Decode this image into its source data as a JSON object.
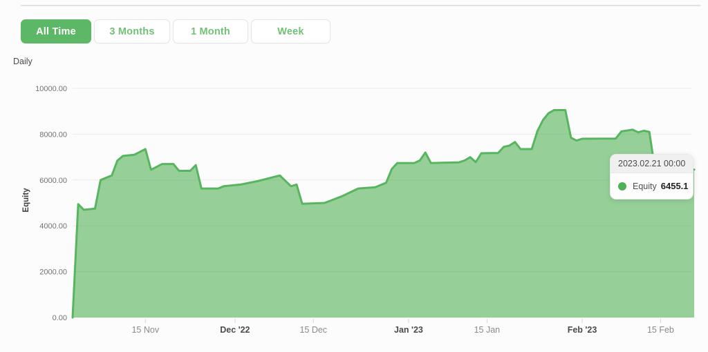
{
  "toolbar": {
    "buttons": [
      {
        "label": "All Time",
        "active": true
      },
      {
        "label": "3 Months",
        "active": false
      },
      {
        "label": "1 Month",
        "active": false
      },
      {
        "label": "Week",
        "active": false
      }
    ]
  },
  "period_label": "Daily",
  "tooltip": {
    "title": "2023.02.21 00:00",
    "series_label": "Equity",
    "value": "6455.1"
  },
  "colors": {
    "accent": "#5cb866",
    "area_fill": "rgba(76,175,80,0.58)",
    "line": "#58b55f",
    "grid": "#e9e9e9",
    "axis_tick": "#d5d5d5",
    "x_label": "#8a8a8a",
    "x_label_bold": "#4a4a4a",
    "y_label": "#717171"
  },
  "chart_data": {
    "type": "area",
    "series_name": "Equity",
    "ylabel": "Equity",
    "ylim": [
      0,
      10000
    ],
    "grid": "horizontal",
    "yticks": [
      {
        "value": 0,
        "label": "0.00"
      },
      {
        "value": 2000,
        "label": "2000.00"
      },
      {
        "value": 4000,
        "label": "4000.00"
      },
      {
        "value": 6000,
        "label": "6000.00"
      },
      {
        "value": 8000,
        "label": "8000.00"
      },
      {
        "value": 10000,
        "label": "10000.00"
      }
    ],
    "x_range": [
      "2022-11-02",
      "2023-02-21"
    ],
    "xticks": [
      {
        "date": "2022-11-15",
        "label": "15 Nov",
        "bold": false
      },
      {
        "date": "2022-12-01",
        "label": "Dec '22",
        "bold": true
      },
      {
        "date": "2022-12-15",
        "label": "15 Dec",
        "bold": false
      },
      {
        "date": "2023-01-01",
        "label": "Jan '23",
        "bold": true
      },
      {
        "date": "2023-01-15",
        "label": "15 Jan",
        "bold": false
      },
      {
        "date": "2023-02-01",
        "label": "Feb '23",
        "bold": true
      },
      {
        "date": "2023-02-15",
        "label": "15 Feb",
        "bold": false
      }
    ],
    "points": [
      [
        "2022-11-02",
        0
      ],
      [
        "2022-11-03",
        4950
      ],
      [
        "2022-11-04",
        4700
      ],
      [
        "2022-11-06",
        4750
      ],
      [
        "2022-11-07",
        6000
      ],
      [
        "2022-11-09",
        6200
      ],
      [
        "2022-11-10",
        6850
      ],
      [
        "2022-11-11",
        7050
      ],
      [
        "2022-11-13",
        7100
      ],
      [
        "2022-11-15",
        7350
      ],
      [
        "2022-11-16",
        6450
      ],
      [
        "2022-11-18",
        6700
      ],
      [
        "2022-11-20",
        6700
      ],
      [
        "2022-11-21",
        6400
      ],
      [
        "2022-11-23",
        6400
      ],
      [
        "2022-11-24",
        6650
      ],
      [
        "2022-11-25",
        5630
      ],
      [
        "2022-11-28",
        5630
      ],
      [
        "2022-11-29",
        5730
      ],
      [
        "2022-12-02",
        5800
      ],
      [
        "2022-12-05",
        5950
      ],
      [
        "2022-12-09",
        6200
      ],
      [
        "2022-12-11",
        5730
      ],
      [
        "2022-12-12",
        5800
      ],
      [
        "2022-12-13",
        4960
      ],
      [
        "2022-12-17",
        5000
      ],
      [
        "2022-12-20",
        5280
      ],
      [
        "2022-12-23",
        5630
      ],
      [
        "2022-12-26",
        5680
      ],
      [
        "2022-12-28",
        5880
      ],
      [
        "2022-12-29",
        6480
      ],
      [
        "2022-12-30",
        6740
      ],
      [
        "2023-01-02",
        6740
      ],
      [
        "2023-01-03",
        6850
      ],
      [
        "2023-01-04",
        7200
      ],
      [
        "2023-01-05",
        6740
      ],
      [
        "2023-01-10",
        6770
      ],
      [
        "2023-01-11",
        6850
      ],
      [
        "2023-01-12",
        7000
      ],
      [
        "2023-01-13",
        6780
      ],
      [
        "2023-01-14",
        7170
      ],
      [
        "2023-01-17",
        7180
      ],
      [
        "2023-01-18",
        7450
      ],
      [
        "2023-01-19",
        7500
      ],
      [
        "2023-01-20",
        7660
      ],
      [
        "2023-01-21",
        7350
      ],
      [
        "2023-01-23",
        7350
      ],
      [
        "2023-01-24",
        8130
      ],
      [
        "2023-01-25",
        8615
      ],
      [
        "2023-01-26",
        8920
      ],
      [
        "2023-01-27",
        9050
      ],
      [
        "2023-01-29",
        9050
      ],
      [
        "2023-01-30",
        7850
      ],
      [
        "2023-01-31",
        7720
      ],
      [
        "2023-02-01",
        7800
      ],
      [
        "2023-02-07",
        7810
      ],
      [
        "2023-02-08",
        8120
      ],
      [
        "2023-02-10",
        8200
      ],
      [
        "2023-02-11",
        8080
      ],
      [
        "2023-02-12",
        8150
      ],
      [
        "2023-02-13",
        8100
      ],
      [
        "2023-02-14",
        6455
      ],
      [
        "2023-02-21",
        6455.1
      ]
    ]
  }
}
